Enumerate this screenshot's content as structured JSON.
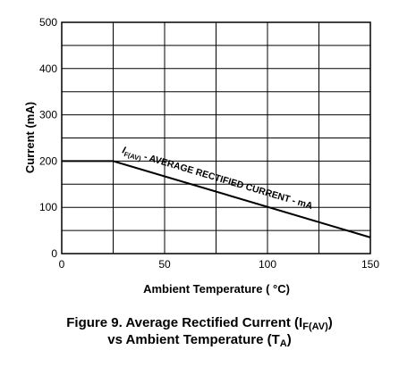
{
  "chart_data": {
    "type": "line",
    "xlabel": "Ambient Temperature ( °C)",
    "ylabel": "Current (mA)",
    "xlim": [
      0,
      150
    ],
    "ylim": [
      0,
      500
    ],
    "x_ticks": [
      "0",
      "50",
      "100",
      "150"
    ],
    "y_ticks": [
      "0",
      "100",
      "200",
      "300",
      "400",
      "500"
    ],
    "grid": true,
    "series": [
      {
        "label_main": "I",
        "label_sub": "F(AV)",
        "label_rest": " - AVERAGE RECTIFIED CURRENT - mA",
        "x": [
          0,
          25,
          150
        ],
        "y": [
          200,
          200,
          35
        ]
      }
    ]
  },
  "caption": {
    "line1_prefix": "Figure 9. Average Rectified Current (I",
    "line1_sub": "F(AV)",
    "line1_suffix": ")",
    "line2_prefix": "vs Ambient Temperature (T",
    "line2_sub": "A",
    "line2_suffix": ")"
  }
}
